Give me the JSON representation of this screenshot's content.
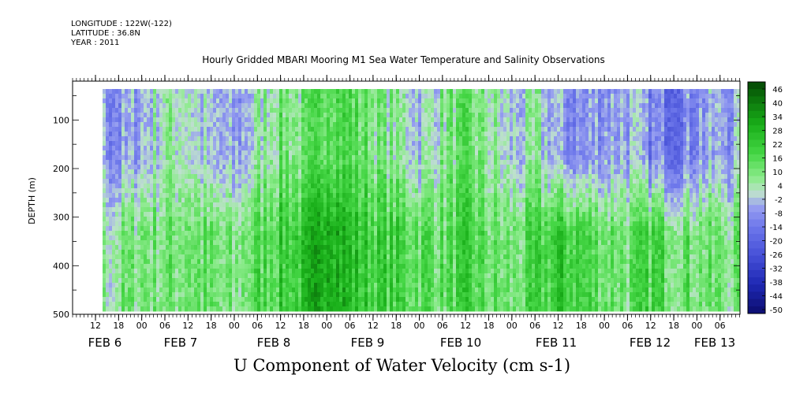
{
  "header": {
    "longitude": "LONGITUDE : 122W(-122)",
    "latitude": "LATITUDE : 36.8N",
    "year": "YEAR : 2011"
  },
  "chart_data": {
    "type": "heatmap",
    "title": "Hourly Gridded MBARI Mooring M1 Sea Water Temperature and Salinity Observations",
    "xlabel": "U Component of Water Velocity (cm s-1)",
    "ylabel": "DEPTH (m)",
    "y_ticks": [
      100,
      200,
      300,
      400,
      500
    ],
    "ylim": [
      500,
      20
    ],
    "x_hour_labels": [
      "12",
      "18",
      "00",
      "06",
      "12",
      "18",
      "00",
      "06",
      "12",
      "18",
      "00",
      "06",
      "12",
      "18",
      "00",
      "06",
      "12",
      "18",
      "00",
      "06",
      "12",
      "18",
      "00",
      "06",
      "12",
      "18",
      "00",
      "06"
    ],
    "x_day_labels": [
      "FEB  6",
      "FEB  7",
      "FEB  8",
      "FEB  9",
      "FEB 10",
      "FEB 11",
      "FEB 12",
      "FEB 13"
    ],
    "colorbar_labels": [
      "46",
      "40",
      "34",
      "28",
      "22",
      "16",
      "10",
      "4",
      "-2",
      "-8",
      "-14",
      "-20",
      "-26",
      "-32",
      "-38",
      "-44",
      "-50"
    ],
    "colorbar_range": [
      -50,
      46
    ],
    "time_columns_note": "hourly columns Feb 6 11:00 to Feb 13 07:00",
    "depth_rows": [
      20,
      50,
      80,
      110,
      140,
      170,
      200,
      230,
      260,
      290,
      320,
      350,
      380,
      410,
      440,
      470,
      490
    ],
    "column_profiles": {
      "times": [
        "FEB6 12",
        "FEB6 18",
        "FEB7 00",
        "FEB7 06",
        "FEB7 12",
        "FEB7 18",
        "FEB8 00",
        "FEB8 06",
        "FEB8 12",
        "FEB8 18",
        "FEB9 00",
        "FEB9 06",
        "FEB9 12",
        "FEB9 18",
        "FEB10 00",
        "FEB10 06",
        "FEB10 12",
        "FEB10 18",
        "FEB11 00",
        "FEB11 06",
        "FEB11 12",
        "FEB11 18",
        "FEB12 00",
        "FEB12 06",
        "FEB12 12",
        "FEB12 18",
        "FEB13 00",
        "FEB13 06"
      ],
      "upper_mean": [
        -6,
        -10,
        -4,
        4,
        2,
        -6,
        -8,
        2,
        10,
        6,
        18,
        14,
        8,
        4,
        -2,
        6,
        10,
        4,
        -4,
        2,
        -8,
        -10,
        -6,
        -4,
        -12,
        -14,
        -8,
        -6
      ],
      "lower_mean": [
        2,
        6,
        10,
        8,
        12,
        8,
        6,
        14,
        18,
        20,
        34,
        22,
        18,
        16,
        14,
        12,
        16,
        10,
        8,
        14,
        20,
        16,
        12,
        10,
        16,
        12,
        10,
        8
      ]
    }
  },
  "colors": {
    "negative_deep": "#1a1a8c",
    "negative_mid": "#7c7ce6",
    "negative_light": "#b0b6f0",
    "neutral": "#c8f0c8",
    "positive_light": "#6ee06e",
    "positive_mid": "#1ebe1e",
    "positive_deep": "#0a5a0a"
  }
}
